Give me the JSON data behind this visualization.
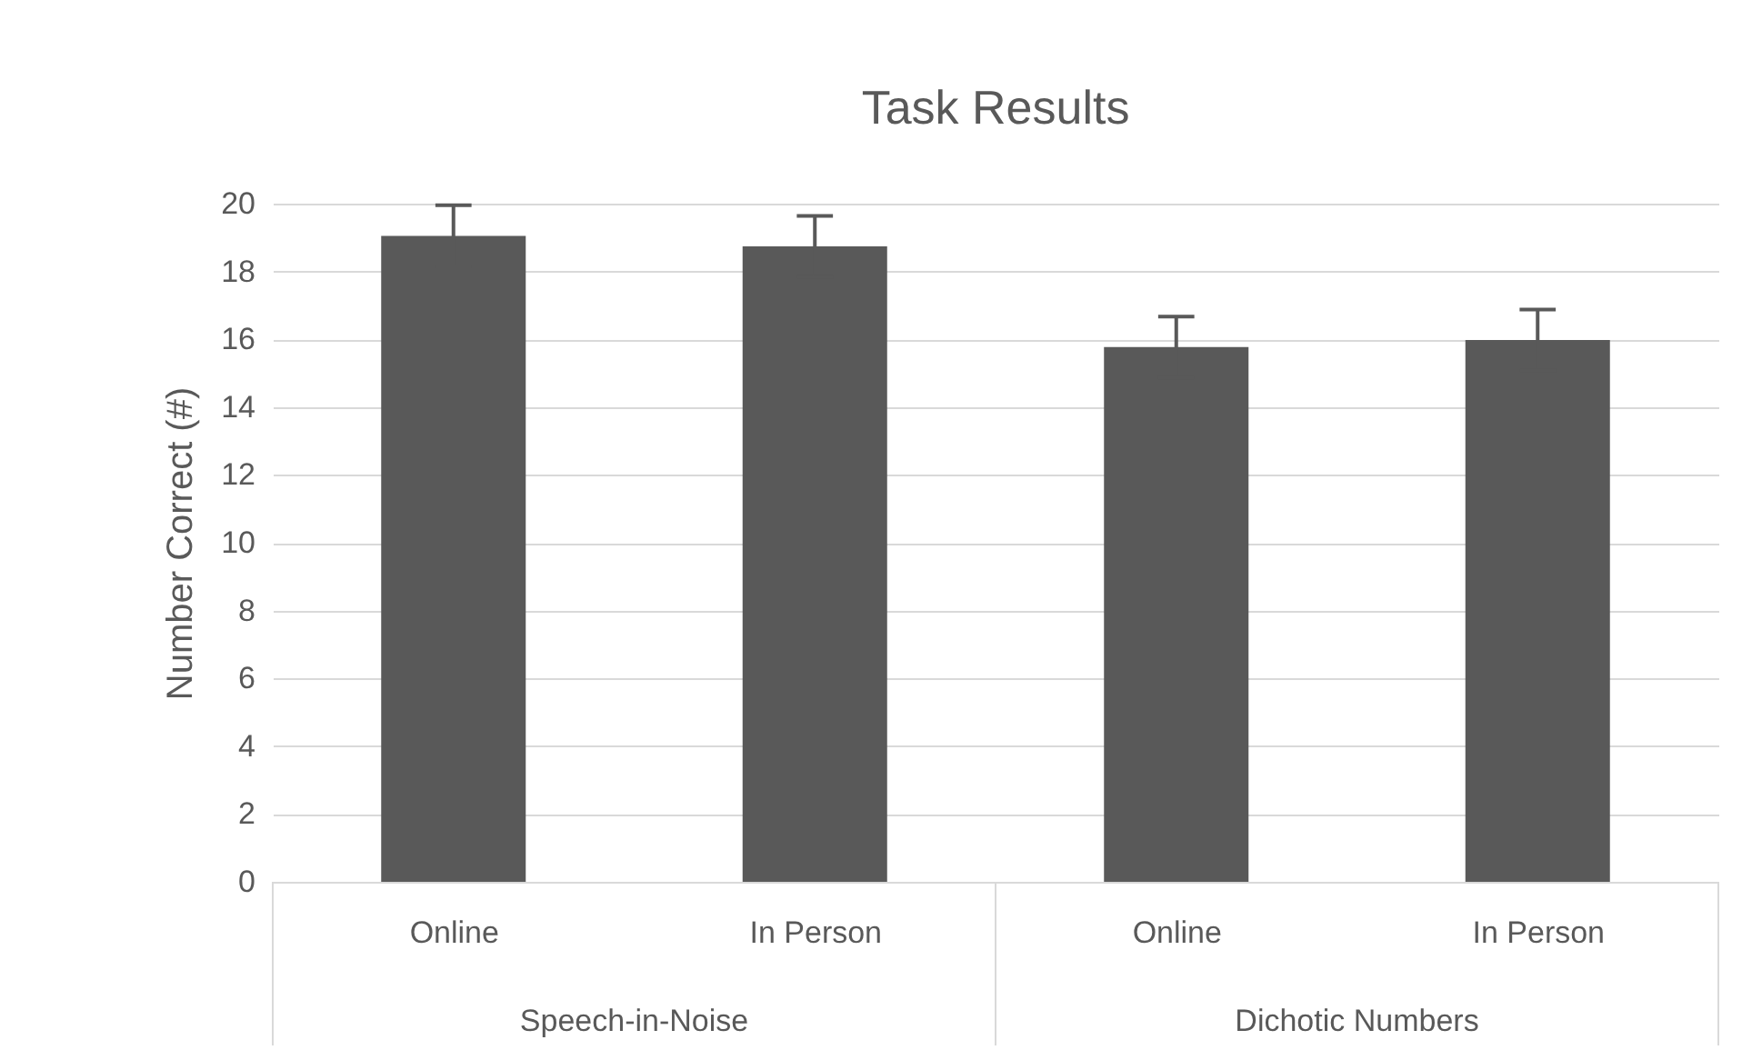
{
  "chart_data": {
    "type": "bar",
    "title": "Task Results",
    "ylabel": "Number Correct (#)",
    "categories": [
      "Online",
      "In Person",
      "Online",
      "In Person"
    ],
    "values": [
      19.05,
      18.74,
      15.77,
      15.98
    ],
    "errors": [
      0.9,
      0.9,
      0.9,
      0.9
    ],
    "color": "#595959",
    "annotations": [
      "Speech-in-Noise",
      "Dichotic Numbers"
    ],
    "ylim": [
      0,
      20
    ],
    "yticks": [
      0,
      2,
      4,
      6,
      8,
      10,
      12,
      14,
      16,
      18,
      20
    ],
    "grid": "y"
  }
}
